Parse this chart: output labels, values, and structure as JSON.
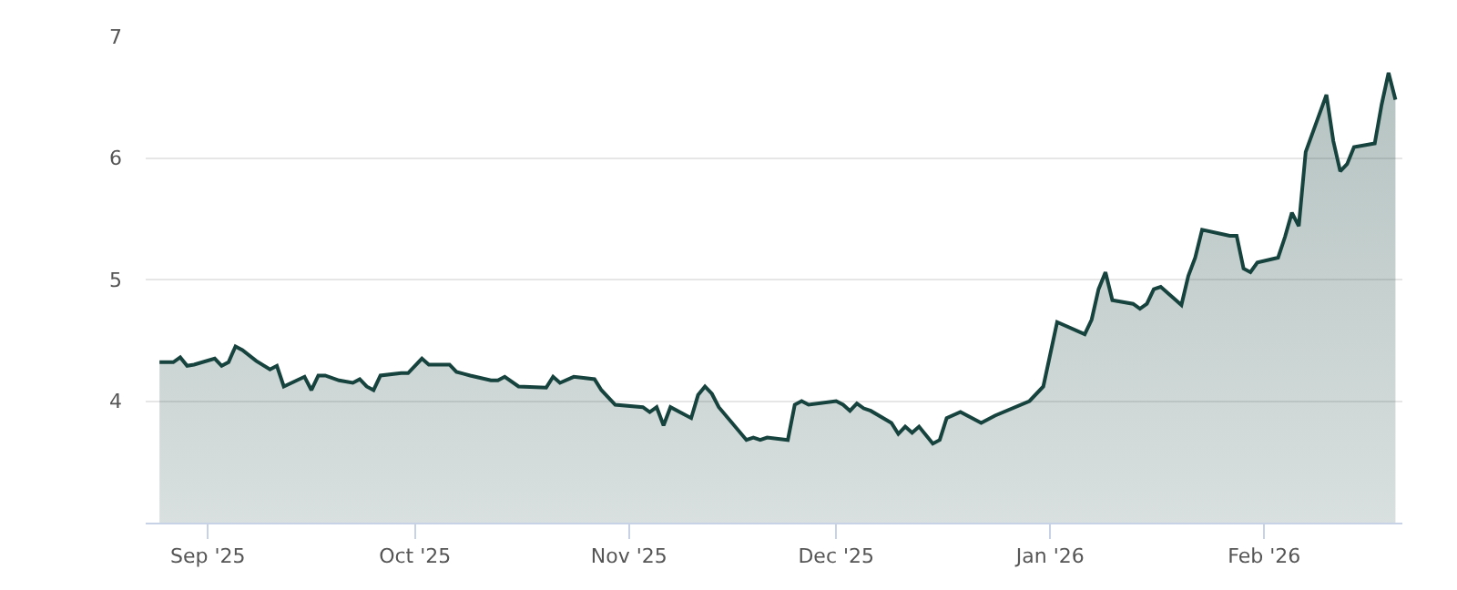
{
  "chart_data": {
    "type": "area",
    "x": [
      "2025-08-25",
      "2025-08-27",
      "2025-08-28",
      "2025-08-29",
      "2025-08-30",
      "2025-09-02",
      "2025-09-03",
      "2025-09-04",
      "2025-09-05",
      "2025-09-06",
      "2025-09-08",
      "2025-09-10",
      "2025-09-11",
      "2025-09-12",
      "2025-09-15",
      "2025-09-16",
      "2025-09-17",
      "2025-09-18",
      "2025-09-20",
      "2025-09-22",
      "2025-09-23",
      "2025-09-24",
      "2025-09-25",
      "2025-09-26",
      "2025-09-29",
      "2025-09-30",
      "2025-10-02",
      "2025-10-03",
      "2025-10-06",
      "2025-10-07",
      "2025-10-09",
      "2025-10-12",
      "2025-10-13",
      "2025-10-14",
      "2025-10-16",
      "2025-10-20",
      "2025-10-21",
      "2025-10-22",
      "2025-10-24",
      "2025-10-27",
      "2025-10-28",
      "2025-10-30",
      "2025-11-03",
      "2025-11-04",
      "2025-11-05",
      "2025-11-06",
      "2025-11-07",
      "2025-11-10",
      "2025-11-11",
      "2025-11-12",
      "2025-11-13",
      "2025-11-14",
      "2025-11-18",
      "2025-11-19",
      "2025-11-20",
      "2025-11-21",
      "2025-11-24",
      "2025-11-25",
      "2025-11-26",
      "2025-11-27",
      "2025-12-01",
      "2025-12-02",
      "2025-12-03",
      "2025-12-04",
      "2025-12-05",
      "2025-12-06",
      "2025-12-09",
      "2025-12-10",
      "2025-12-11",
      "2025-12-12",
      "2025-12-13",
      "2025-12-15",
      "2025-12-16",
      "2025-12-17",
      "2025-12-19",
      "2025-12-22",
      "2025-12-24",
      "2025-12-29",
      "2025-12-31",
      "2026-01-02",
      "2026-01-06",
      "2026-01-07",
      "2026-01-08",
      "2026-01-09",
      "2026-01-10",
      "2026-01-13",
      "2026-01-14",
      "2026-01-15",
      "2026-01-16",
      "2026-01-17",
      "2026-01-20",
      "2026-01-21",
      "2026-01-22",
      "2026-01-23",
      "2026-01-27",
      "2026-01-28",
      "2026-01-29",
      "2026-01-30",
      "2026-01-31",
      "2026-02-03",
      "2026-02-04",
      "2026-02-05",
      "2026-02-06",
      "2026-02-07",
      "2026-02-10",
      "2026-02-11",
      "2026-02-12",
      "2026-02-13",
      "2026-02-14",
      "2026-02-17",
      "2026-02-18",
      "2026-02-19",
      "2026-02-20"
    ],
    "series": [
      {
        "color": "#17433e",
        "values": [
          4.32,
          4.32,
          4.36,
          4.29,
          4.3,
          4.35,
          4.29,
          4.32,
          4.45,
          4.42,
          4.33,
          4.26,
          4.29,
          4.12,
          4.2,
          4.09,
          4.21,
          4.21,
          4.17,
          4.15,
          4.18,
          4.12,
          4.09,
          4.21,
          4.23,
          4.23,
          4.35,
          4.3,
          4.3,
          4.24,
          4.21,
          4.17,
          4.17,
          4.2,
          4.12,
          4.11,
          4.2,
          4.15,
          4.2,
          4.18,
          4.09,
          3.97,
          3.95,
          3.91,
          3.95,
          3.8,
          3.95,
          3.86,
          4.05,
          4.12,
          4.06,
          3.95,
          3.68,
          3.7,
          3.68,
          3.7,
          3.68,
          3.97,
          4.0,
          3.97,
          4.0,
          3.97,
          3.92,
          3.98,
          3.94,
          3.92,
          3.82,
          3.73,
          3.79,
          3.74,
          3.79,
          3.65,
          3.68,
          3.86,
          3.91,
          3.82,
          3.88,
          4.0,
          4.12,
          4.65,
          4.55,
          4.67,
          4.92,
          5.06,
          4.83,
          4.8,
          4.76,
          4.8,
          4.92,
          4.94,
          4.79,
          5.03,
          5.18,
          5.41,
          5.36,
          5.36,
          5.09,
          5.06,
          5.14,
          5.18,
          5.35,
          5.55,
          5.44,
          6.05,
          6.52,
          6.14,
          5.89,
          5.95,
          6.09,
          6.12,
          6.44,
          6.7,
          6.48
        ]
      }
    ],
    "xlim": [
      "2025-08-23",
      "2026-02-21"
    ],
    "xticks": [
      {
        "value": "2025-09-01",
        "label": "Sep '25"
      },
      {
        "value": "2025-10-01",
        "label": "Oct '25"
      },
      {
        "value": "2025-11-01",
        "label": "Nov '25"
      },
      {
        "value": "2025-12-01",
        "label": "Dec '25"
      },
      {
        "value": "2026-01-01",
        "label": "Jan '26"
      },
      {
        "value": "2026-02-01",
        "label": "Feb '26"
      }
    ],
    "ylim": [
      3,
      7
    ],
    "yticks": [
      4,
      5,
      6,
      7
    ],
    "grid": "y",
    "legend": false
  }
}
